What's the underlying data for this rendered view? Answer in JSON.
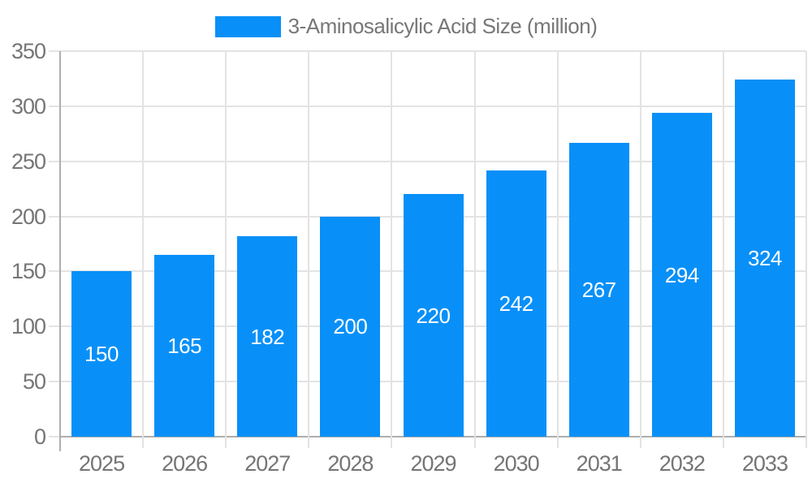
{
  "legend": {
    "label": "3-Aminosalicylic Acid Size (million)"
  },
  "chart_data": {
    "type": "bar",
    "title": "",
    "xlabel": "",
    "ylabel": "",
    "categories": [
      "2025",
      "2026",
      "2027",
      "2028",
      "2029",
      "2030",
      "2031",
      "2032",
      "2033"
    ],
    "values": [
      150,
      165,
      182,
      200,
      220,
      242,
      267,
      294,
      324
    ],
    "series_name": "3-Aminosalicylic Acid Size (million)",
    "ylim": [
      0,
      350
    ],
    "yticks": [
      0,
      50,
      100,
      150,
      200,
      250,
      300,
      350
    ],
    "grid": true,
    "legend_position": "top",
    "colors": {
      "bar": "#0890f8",
      "grid": "#e3e3e3",
      "axis": "#aeaeae",
      "tick_label": "#757575",
      "legend_text": "#777777",
      "bar_label": "#ffffff",
      "background": "#ffffff"
    }
  }
}
